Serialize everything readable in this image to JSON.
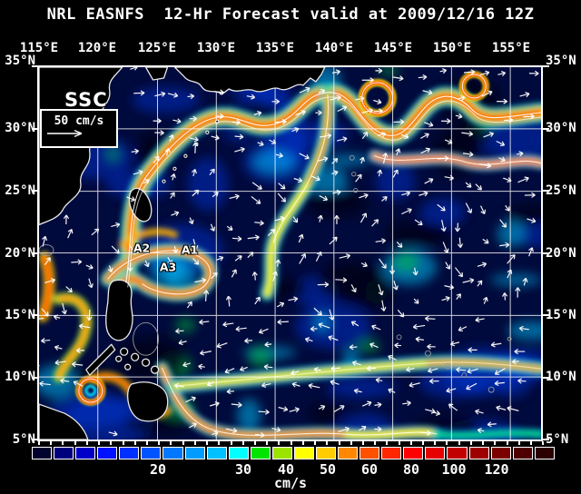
{
  "title": "NRL EASNFS  12-Hr Forecast valid at 2009/12/16 12Z",
  "axes": {
    "lon_labels": [
      "115°E",
      "120°E",
      "125°E",
      "130°E",
      "135°E",
      "140°E",
      "145°E",
      "150°E",
      "155°E"
    ],
    "lat_labels_left": [
      "35°N",
      "30°N",
      "25°N",
      "20°N",
      "15°N",
      "10°N",
      "5°N"
    ],
    "lat_labels_right": [
      "35°N",
      "30°N",
      "25°N",
      "20°N",
      "15°N",
      "10°N",
      "5°N"
    ]
  },
  "legend": {
    "field_label": "SSC",
    "reference_label": "50 cm/s",
    "reference_arrow_icon": "right-arrow"
  },
  "annotations": [
    "A1",
    "A2",
    "A3"
  ],
  "colorbar": {
    "units_label": "cm/s",
    "tick_labels": [
      "20",
      "30",
      "40",
      "50",
      "60",
      "80",
      "100",
      "120"
    ],
    "cell_colors": [
      "#02022e",
      "#00007f",
      "#0000c8",
      "#0011ff",
      "#0030ff",
      "#0054ff",
      "#0078ff",
      "#009cff",
      "#00c0ff",
      "#00ffff",
      "#00e400",
      "#9ce400",
      "#ffff00",
      "#ffcc00",
      "#ff8800",
      "#ff5100",
      "#ff2600",
      "#fe0000",
      "#e60000",
      "#c30000",
      "#9e0000",
      "#7a0000",
      "#4e0000",
      "#2a0000"
    ]
  },
  "colors": {
    "sea_background": "#000a3c",
    "land": "#000000",
    "coastline": "#e9e9e9",
    "grid": "#ffffff",
    "arrow": "#ffffff"
  }
}
